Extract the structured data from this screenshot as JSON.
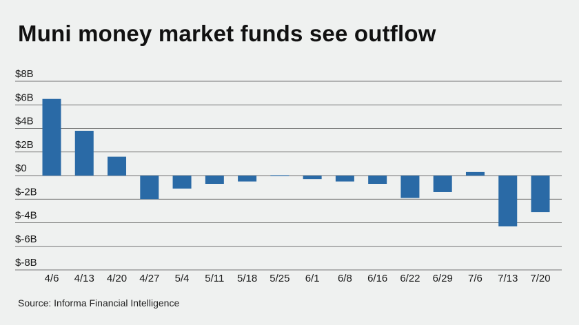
{
  "title": "Muni money market funds see outflow",
  "source": "Source: Informa Financial Intelligence",
  "colors": {
    "bar": "#2a6aa6",
    "grid": "#4a4a4a",
    "background": "#eff1f0"
  },
  "chart_data": {
    "type": "bar",
    "title": "Muni money market funds see outflow",
    "xlabel": "",
    "ylabel": "",
    "ylim": [
      -8,
      8
    ],
    "yticks": [
      8,
      6,
      4,
      2,
      0,
      -2,
      -4,
      -6,
      -8
    ],
    "ytick_labels": [
      "$8B",
      "$6B",
      "$4B",
      "$2B",
      "$0",
      "$-2B",
      "$-4B",
      "$-6B",
      "$-8B"
    ],
    "grid": true,
    "categories": [
      "4/6",
      "4/13",
      "4/20",
      "4/27",
      "5/4",
      "5/11",
      "5/18",
      "5/25",
      "6/1",
      "6/8",
      "6/16",
      "6/22",
      "6/29",
      "7/6",
      "7/13",
      "7/20"
    ],
    "values": [
      6.5,
      3.8,
      1.6,
      -2.0,
      -1.1,
      -0.7,
      -0.5,
      0.05,
      -0.3,
      -0.5,
      -0.7,
      -1.9,
      -1.4,
      0.3,
      -4.3,
      -3.1
    ]
  }
}
